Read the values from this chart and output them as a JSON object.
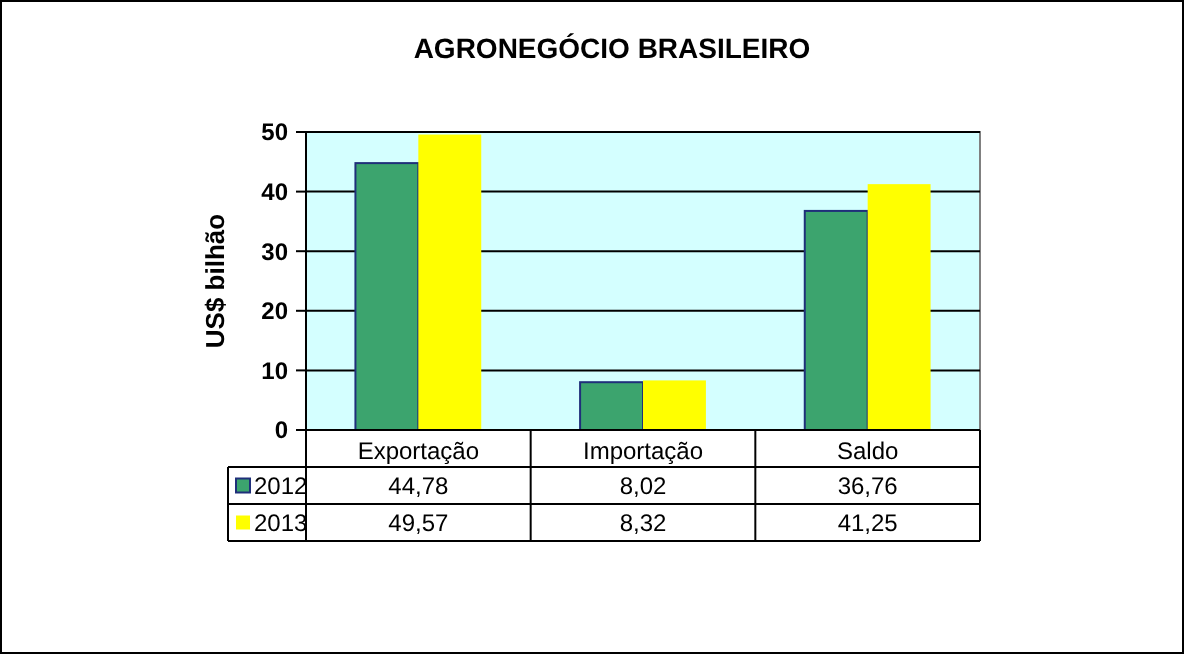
{
  "chart_data": {
    "type": "bar",
    "title": "AGRONEGÓCIO BRASILEIRO",
    "ylabel": "US$ bilhão",
    "categories": [
      "Exportação",
      "Importação",
      "Saldo"
    ],
    "series": [
      {
        "name": "2012",
        "color": "#3ca46e",
        "values": [
          44.78,
          8.02,
          36.76
        ],
        "value_labels": [
          "44,78",
          "8,02",
          "36,76"
        ]
      },
      {
        "name": "2013",
        "color": "#ffff00",
        "values": [
          49.57,
          8.32,
          41.25
        ],
        "value_labels": [
          "49,57",
          "8,32",
          "41,25"
        ]
      }
    ],
    "ylim": [
      0,
      50
    ],
    "yticks": [
      0,
      10,
      20,
      30,
      40,
      50
    ],
    "grid": "y",
    "legend": "bottom left"
  }
}
